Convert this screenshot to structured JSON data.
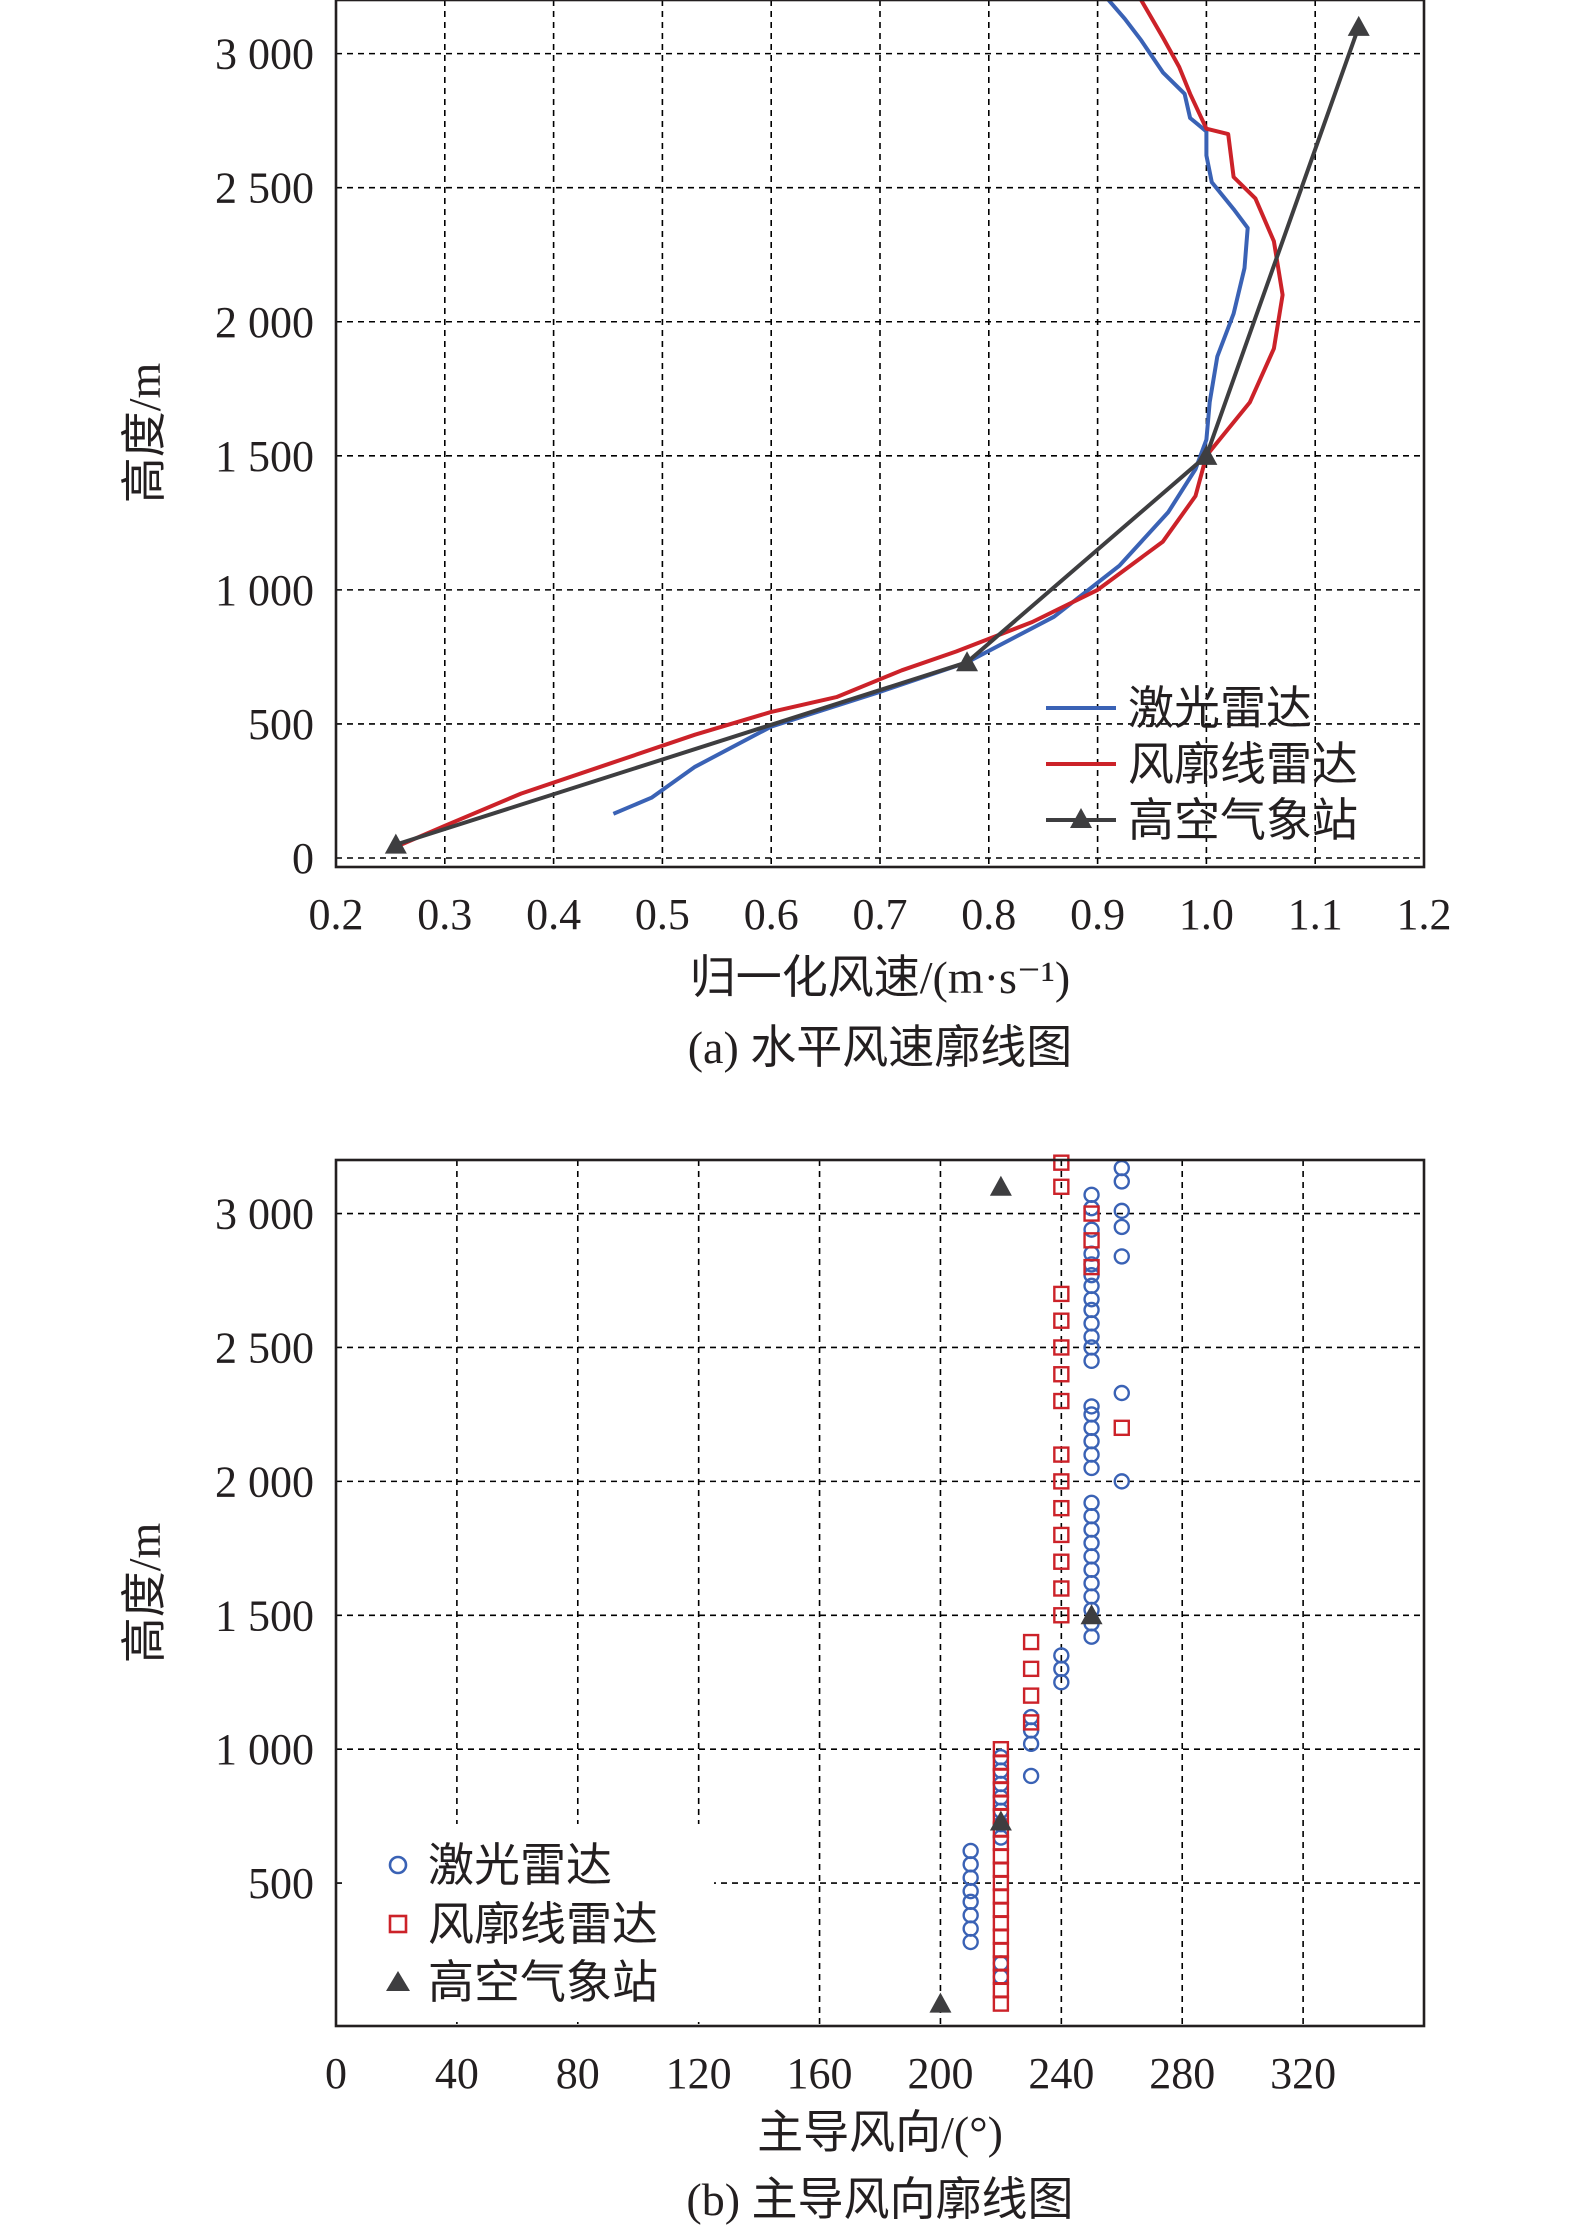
{
  "chart_data": [
    {
      "type": "line",
      "caption": "(a) 水平风速廓线图",
      "xlabel": "归一化风速/(m·s⁻¹)",
      "ylabel": "高度/m",
      "xlim": [
        0.2,
        1.2
      ],
      "ylim": [
        0,
        3200
      ],
      "xticks": [
        0.2,
        0.3,
        0.4,
        0.5,
        0.6,
        0.7,
        0.8,
        0.9,
        1.0,
        1.1,
        1.2
      ],
      "xtick_labels": [
        "0.2",
        "0.3",
        "0.4",
        "0.5",
        "0.6",
        "0.7",
        "0.8",
        "0.9",
        "1.0",
        "1.1",
        "1.2"
      ],
      "yticks": [
        0,
        500,
        1000,
        1500,
        2000,
        2500,
        3000
      ],
      "ytick_labels": [
        "0",
        "500",
        "1 000",
        "1 500",
        "2 000",
        "2 500",
        "3 000"
      ],
      "grid": true,
      "legend_position": "bottom-right",
      "series": [
        {
          "name": "激光雷达",
          "color": "#3a62b5",
          "marker": "none",
          "points": [
            [
              0.455,
              165
            ],
            [
              0.49,
              225
            ],
            [
              0.53,
              340
            ],
            [
              0.6,
              490
            ],
            [
              0.7,
              620
            ],
            [
              0.78,
              730
            ],
            [
              0.86,
              900
            ],
            [
              0.92,
              1090
            ],
            [
              0.965,
              1290
            ],
            [
              0.99,
              1450
            ],
            [
              1.0,
              1560
            ],
            [
              1.003,
              1700
            ],
            [
              1.01,
              1870
            ],
            [
              1.025,
              2030
            ],
            [
              1.035,
              2200
            ],
            [
              1.038,
              2350
            ],
            [
              1.025,
              2420
            ],
            [
              1.005,
              2520
            ],
            [
              1.0,
              2620
            ],
            [
              1.0,
              2710
            ],
            [
              0.985,
              2760
            ],
            [
              0.98,
              2850
            ],
            [
              0.96,
              2930
            ],
            [
              0.94,
              3050
            ],
            [
              0.925,
              3130
            ],
            [
              0.91,
              3200
            ]
          ]
        },
        {
          "name": "风廓线雷达",
          "color": "#cc2229",
          "marker": "none",
          "points": [
            [
              0.26,
              50
            ],
            [
              0.3,
              120
            ],
            [
              0.37,
              240
            ],
            [
              0.45,
              350
            ],
            [
              0.53,
              460
            ],
            [
              0.6,
              545
            ],
            [
              0.66,
              600
            ],
            [
              0.72,
              700
            ],
            [
              0.77,
              770
            ],
            [
              0.84,
              880
            ],
            [
              0.9,
              1000
            ],
            [
              0.96,
              1180
            ],
            [
              0.99,
              1350
            ],
            [
              1.0,
              1500
            ],
            [
              1.04,
              1700
            ],
            [
              1.062,
              1900
            ],
            [
              1.07,
              2100
            ],
            [
              1.062,
              2300
            ],
            [
              1.045,
              2460
            ],
            [
              1.025,
              2540
            ],
            [
              1.02,
              2700
            ],
            [
              1.0,
              2720
            ],
            [
              0.985,
              2850
            ],
            [
              0.975,
              2950
            ],
            [
              0.96,
              3060
            ],
            [
              0.94,
              3200
            ]
          ]
        },
        {
          "name": "高空气象站",
          "color": "#3e3e40",
          "marker": "triangle",
          "points": [
            [
              0.255,
              50
            ],
            [
              0.78,
              730
            ],
            [
              1.0,
              1500
            ],
            [
              1.14,
              3100
            ]
          ]
        }
      ]
    },
    {
      "type": "scatter",
      "caption": "(b) 主导风向廓线图",
      "xlabel": "主导风向/(°)",
      "ylabel": "高度/m",
      "xlim": [
        0,
        360
      ],
      "ylim": [
        0,
        3200
      ],
      "xticks": [
        0,
        40,
        80,
        120,
        160,
        200,
        240,
        280,
        320
      ],
      "xtick_labels": [
        "0",
        "40",
        "80",
        "120",
        "160",
        "200",
        "240",
        "280",
        "320"
      ],
      "yticks": [
        500,
        1000,
        1500,
        2000,
        2500,
        3000
      ],
      "ytick_labels": [
        "500",
        "1 000",
        "1 500",
        "2 000",
        "2 500",
        "3 000"
      ],
      "grid": true,
      "legend_position": "bottom-left",
      "series": [
        {
          "name": "激光雷达",
          "color": "#3a62b5",
          "marker": "circle",
          "points": [
            [
              210,
              280
            ],
            [
              210,
              330
            ],
            [
              210,
              380
            ],
            [
              210,
              430
            ],
            [
              210,
              470
            ],
            [
              210,
              520
            ],
            [
              210,
              570
            ],
            [
              210,
              620
            ],
            [
              220,
              150
            ],
            [
              220,
              200
            ],
            [
              220,
              670
            ],
            [
              220,
              720
            ],
            [
              220,
              770
            ],
            [
              220,
              820
            ],
            [
              220,
              870
            ],
            [
              220,
              920
            ],
            [
              220,
              970
            ],
            [
              230,
              900
            ],
            [
              230,
              1020
            ],
            [
              230,
              1070
            ],
            [
              230,
              1120
            ],
            [
              240,
              1250
            ],
            [
              240,
              1300
            ],
            [
              240,
              1350
            ],
            [
              250,
              1420
            ],
            [
              250,
              1470
            ],
            [
              250,
              1520
            ],
            [
              250,
              1570
            ],
            [
              250,
              1620
            ],
            [
              250,
              1670
            ],
            [
              250,
              1720
            ],
            [
              250,
              1770
            ],
            [
              250,
              1820
            ],
            [
              250,
              1870
            ],
            [
              250,
              1920
            ],
            [
              250,
              2050
            ],
            [
              250,
              2100
            ],
            [
              250,
              2150
            ],
            [
              250,
              2200
            ],
            [
              250,
              2250
            ],
            [
              250,
              2280
            ],
            [
              250,
              2450
            ],
            [
              250,
              2500
            ],
            [
              250,
              2540
            ],
            [
              250,
              2590
            ],
            [
              250,
              2640
            ],
            [
              250,
              2680
            ],
            [
              250,
              2730
            ],
            [
              250,
              2770
            ],
            [
              250,
              2810
            ],
            [
              250,
              2850
            ],
            [
              250,
              2940
            ],
            [
              250,
              3020
            ],
            [
              250,
              3070
            ],
            [
              260,
              2000
            ],
            [
              260,
              2330
            ],
            [
              260,
              2840
            ],
            [
              260,
              2950
            ],
            [
              260,
              3010
            ],
            [
              260,
              3120
            ],
            [
              260,
              3170
            ]
          ]
        },
        {
          "name": "风廓线雷达",
          "color": "#cc2229",
          "marker": "square",
          "points": [
            [
              220,
              50
            ],
            [
              220,
              100
            ],
            [
              220,
              150
            ],
            [
              220,
              200
            ],
            [
              220,
              250
            ],
            [
              220,
              300
            ],
            [
              220,
              350
            ],
            [
              220,
              400
            ],
            [
              220,
              450
            ],
            [
              220,
              500
            ],
            [
              220,
              550
            ],
            [
              220,
              600
            ],
            [
              220,
              650
            ],
            [
              220,
              700
            ],
            [
              220,
              750
            ],
            [
              220,
              800
            ],
            [
              220,
              850
            ],
            [
              220,
              900
            ],
            [
              220,
              950
            ],
            [
              220,
              1000
            ],
            [
              230,
              1100
            ],
            [
              230,
              1200
            ],
            [
              230,
              1300
            ],
            [
              230,
              1400
            ],
            [
              240,
              1500
            ],
            [
              240,
              1600
            ],
            [
              240,
              1700
            ],
            [
              240,
              1800
            ],
            [
              240,
              1900
            ],
            [
              240,
              2000
            ],
            [
              240,
              2100
            ],
            [
              240,
              2300
            ],
            [
              240,
              2400
            ],
            [
              240,
              2500
            ],
            [
              240,
              2600
            ],
            [
              240,
              2700
            ],
            [
              240,
              3100
            ],
            [
              240,
              3190
            ],
            [
              250,
              2800
            ],
            [
              250,
              2900
            ],
            [
              250,
              3000
            ],
            [
              260,
              2200
            ]
          ]
        },
        {
          "name": "高空气象站",
          "color": "#3e3e40",
          "marker": "triangle",
          "points": [
            [
              200,
              50
            ],
            [
              220,
              730
            ],
            [
              250,
              1500
            ],
            [
              220,
              3100
            ]
          ]
        }
      ]
    }
  ]
}
